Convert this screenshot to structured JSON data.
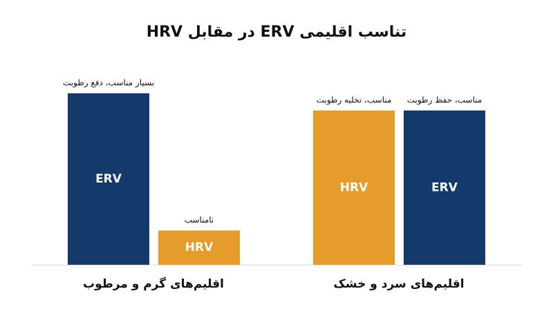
{
  "chart_data": {
    "type": "bar",
    "title": "تناسب اقلیمی ERV در مقابل HRV",
    "categories": [
      "اقلیم‌های گرم و مرطوب",
      "اقلیم‌های سرد و خشک"
    ],
    "series": [
      {
        "name": "ERV",
        "color": "#133a6a",
        "values": [
          100,
          90
        ],
        "annotations": [
          "بسیار مناسب، دفع رطوبت",
          "مناسب، حفظ رطوبت"
        ]
      },
      {
        "name": "HRV",
        "color": "#e59c2a",
        "values": [
          20,
          90
        ],
        "annotations": [
          "نامناسب",
          "مناسب، تخلیه رطوبت"
        ]
      }
    ]
  }
}
